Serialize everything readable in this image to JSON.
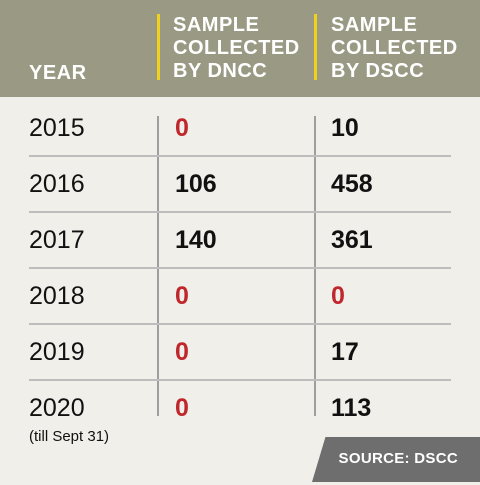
{
  "header": {
    "year": "YEAR",
    "dncc_line1": "SAMPLE",
    "dncc_line2": "COLLECTED",
    "dncc_line3": "BY DNCC",
    "dscc_line1": "SAMPLE",
    "dscc_line2": "COLLECTED",
    "dscc_line3": "BY DSCC"
  },
  "rows": [
    {
      "year": "2015",
      "dncc": "0",
      "dscc": "10"
    },
    {
      "year": "2016",
      "dncc": "106",
      "dscc": "458"
    },
    {
      "year": "2017",
      "dncc": "140",
      "dscc": "361"
    },
    {
      "year": "2018",
      "dncc": "0",
      "dscc": "0"
    },
    {
      "year": "2019",
      "dncc": "0",
      "dscc": "17"
    },
    {
      "year": "2020",
      "dncc": "0",
      "dscc": "113"
    }
  ],
  "note": "(till Sept 31)",
  "source": "SOURCE: DSCC",
  "colors": {
    "header_bg": "#9a9a84",
    "divider": "#f0d21a",
    "zero_value": "#c0272d",
    "source_bg": "#6e6e6e"
  }
}
